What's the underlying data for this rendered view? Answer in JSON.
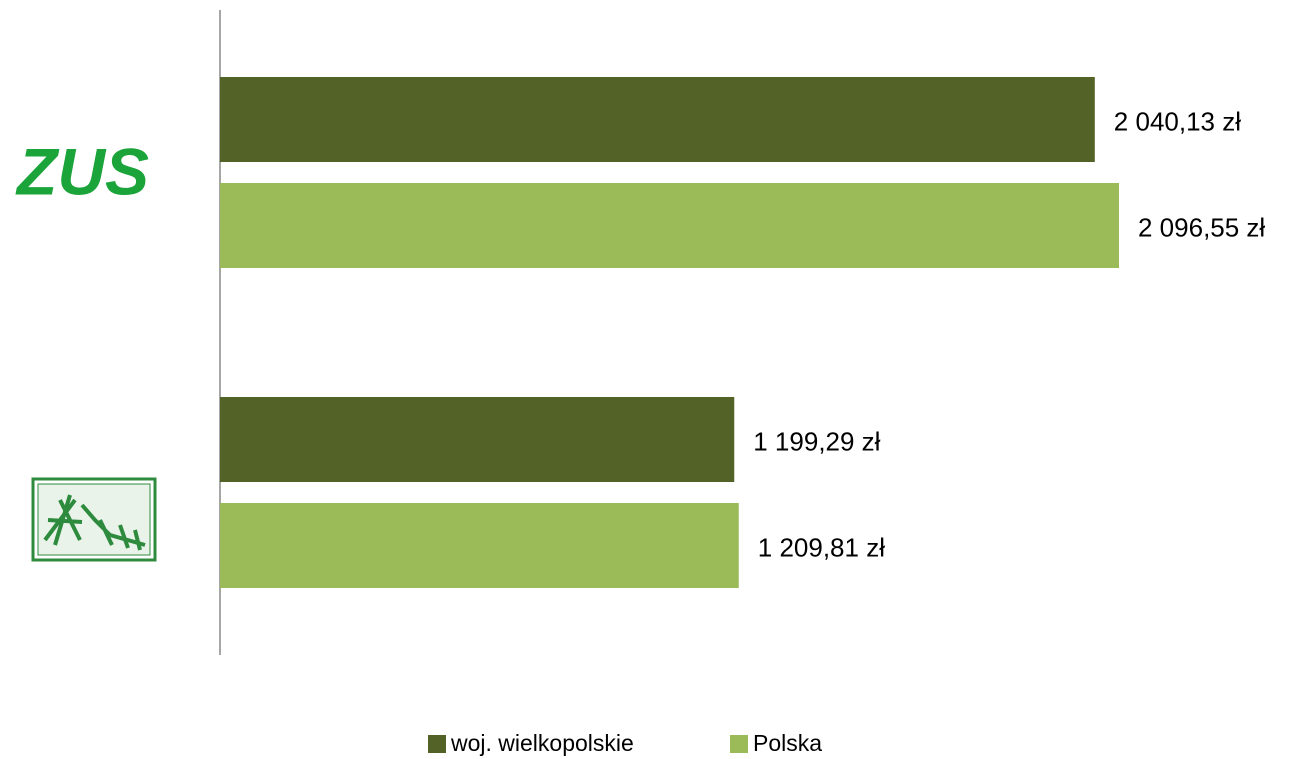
{
  "chart_data": {
    "type": "bar",
    "orientation": "horizontal",
    "categories": [
      "ZUS",
      null
    ],
    "series": [
      {
        "name": "woj. wielkopolskie",
        "color": "#536328",
        "values": [
          2040.13,
          1199.29
        ],
        "value_labels": [
          "2 040,13 zł",
          "1 199,29 zł"
        ]
      },
      {
        "name": "Polska",
        "color": "#9bbb59",
        "values": [
          2096.55,
          1209.81
        ],
        "value_labels": [
          "2 096,55 zł",
          "1 209,81 zł"
        ]
      }
    ],
    "xlim": [
      0,
      2500
    ],
    "legend": "bottom"
  }
}
